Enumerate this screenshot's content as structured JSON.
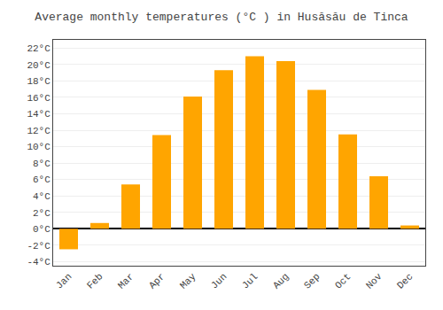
{
  "chart_data": {
    "type": "bar",
    "title": "Average monthly temperatures (°C ) in Husăsău de Tinca",
    "categories": [
      "Jan",
      "Feb",
      "Mar",
      "Apr",
      "May",
      "Jun",
      "Jul",
      "Aug",
      "Sep",
      "Oct",
      "Nov",
      "Dec"
    ],
    "values": [
      -2.5,
      0.7,
      5.4,
      11.4,
      16.1,
      19.3,
      21.0,
      20.4,
      16.9,
      11.5,
      6.4,
      0.4
    ],
    "color": "#FFA500",
    "ylim": [
      -4.5,
      23
    ],
    "yticks": [
      {
        "value": -4,
        "label": "-4°C"
      },
      {
        "value": -2,
        "label": "-2°C"
      },
      {
        "value": 0,
        "label": "0°C"
      },
      {
        "value": 2,
        "label": "2°C"
      },
      {
        "value": 4,
        "label": "4°C"
      },
      {
        "value": 6,
        "label": "6°C"
      },
      {
        "value": 8,
        "label": "8°C"
      },
      {
        "value": 10,
        "label": "10°C"
      },
      {
        "value": 12,
        "label": "12°C"
      },
      {
        "value": 14,
        "label": "14°C"
      },
      {
        "value": 16,
        "label": "16°C"
      },
      {
        "value": 18,
        "label": "18°C"
      },
      {
        "value": 20,
        "label": "20°C"
      },
      {
        "value": 22,
        "label": "22°C"
      }
    ],
    "grid": true
  }
}
